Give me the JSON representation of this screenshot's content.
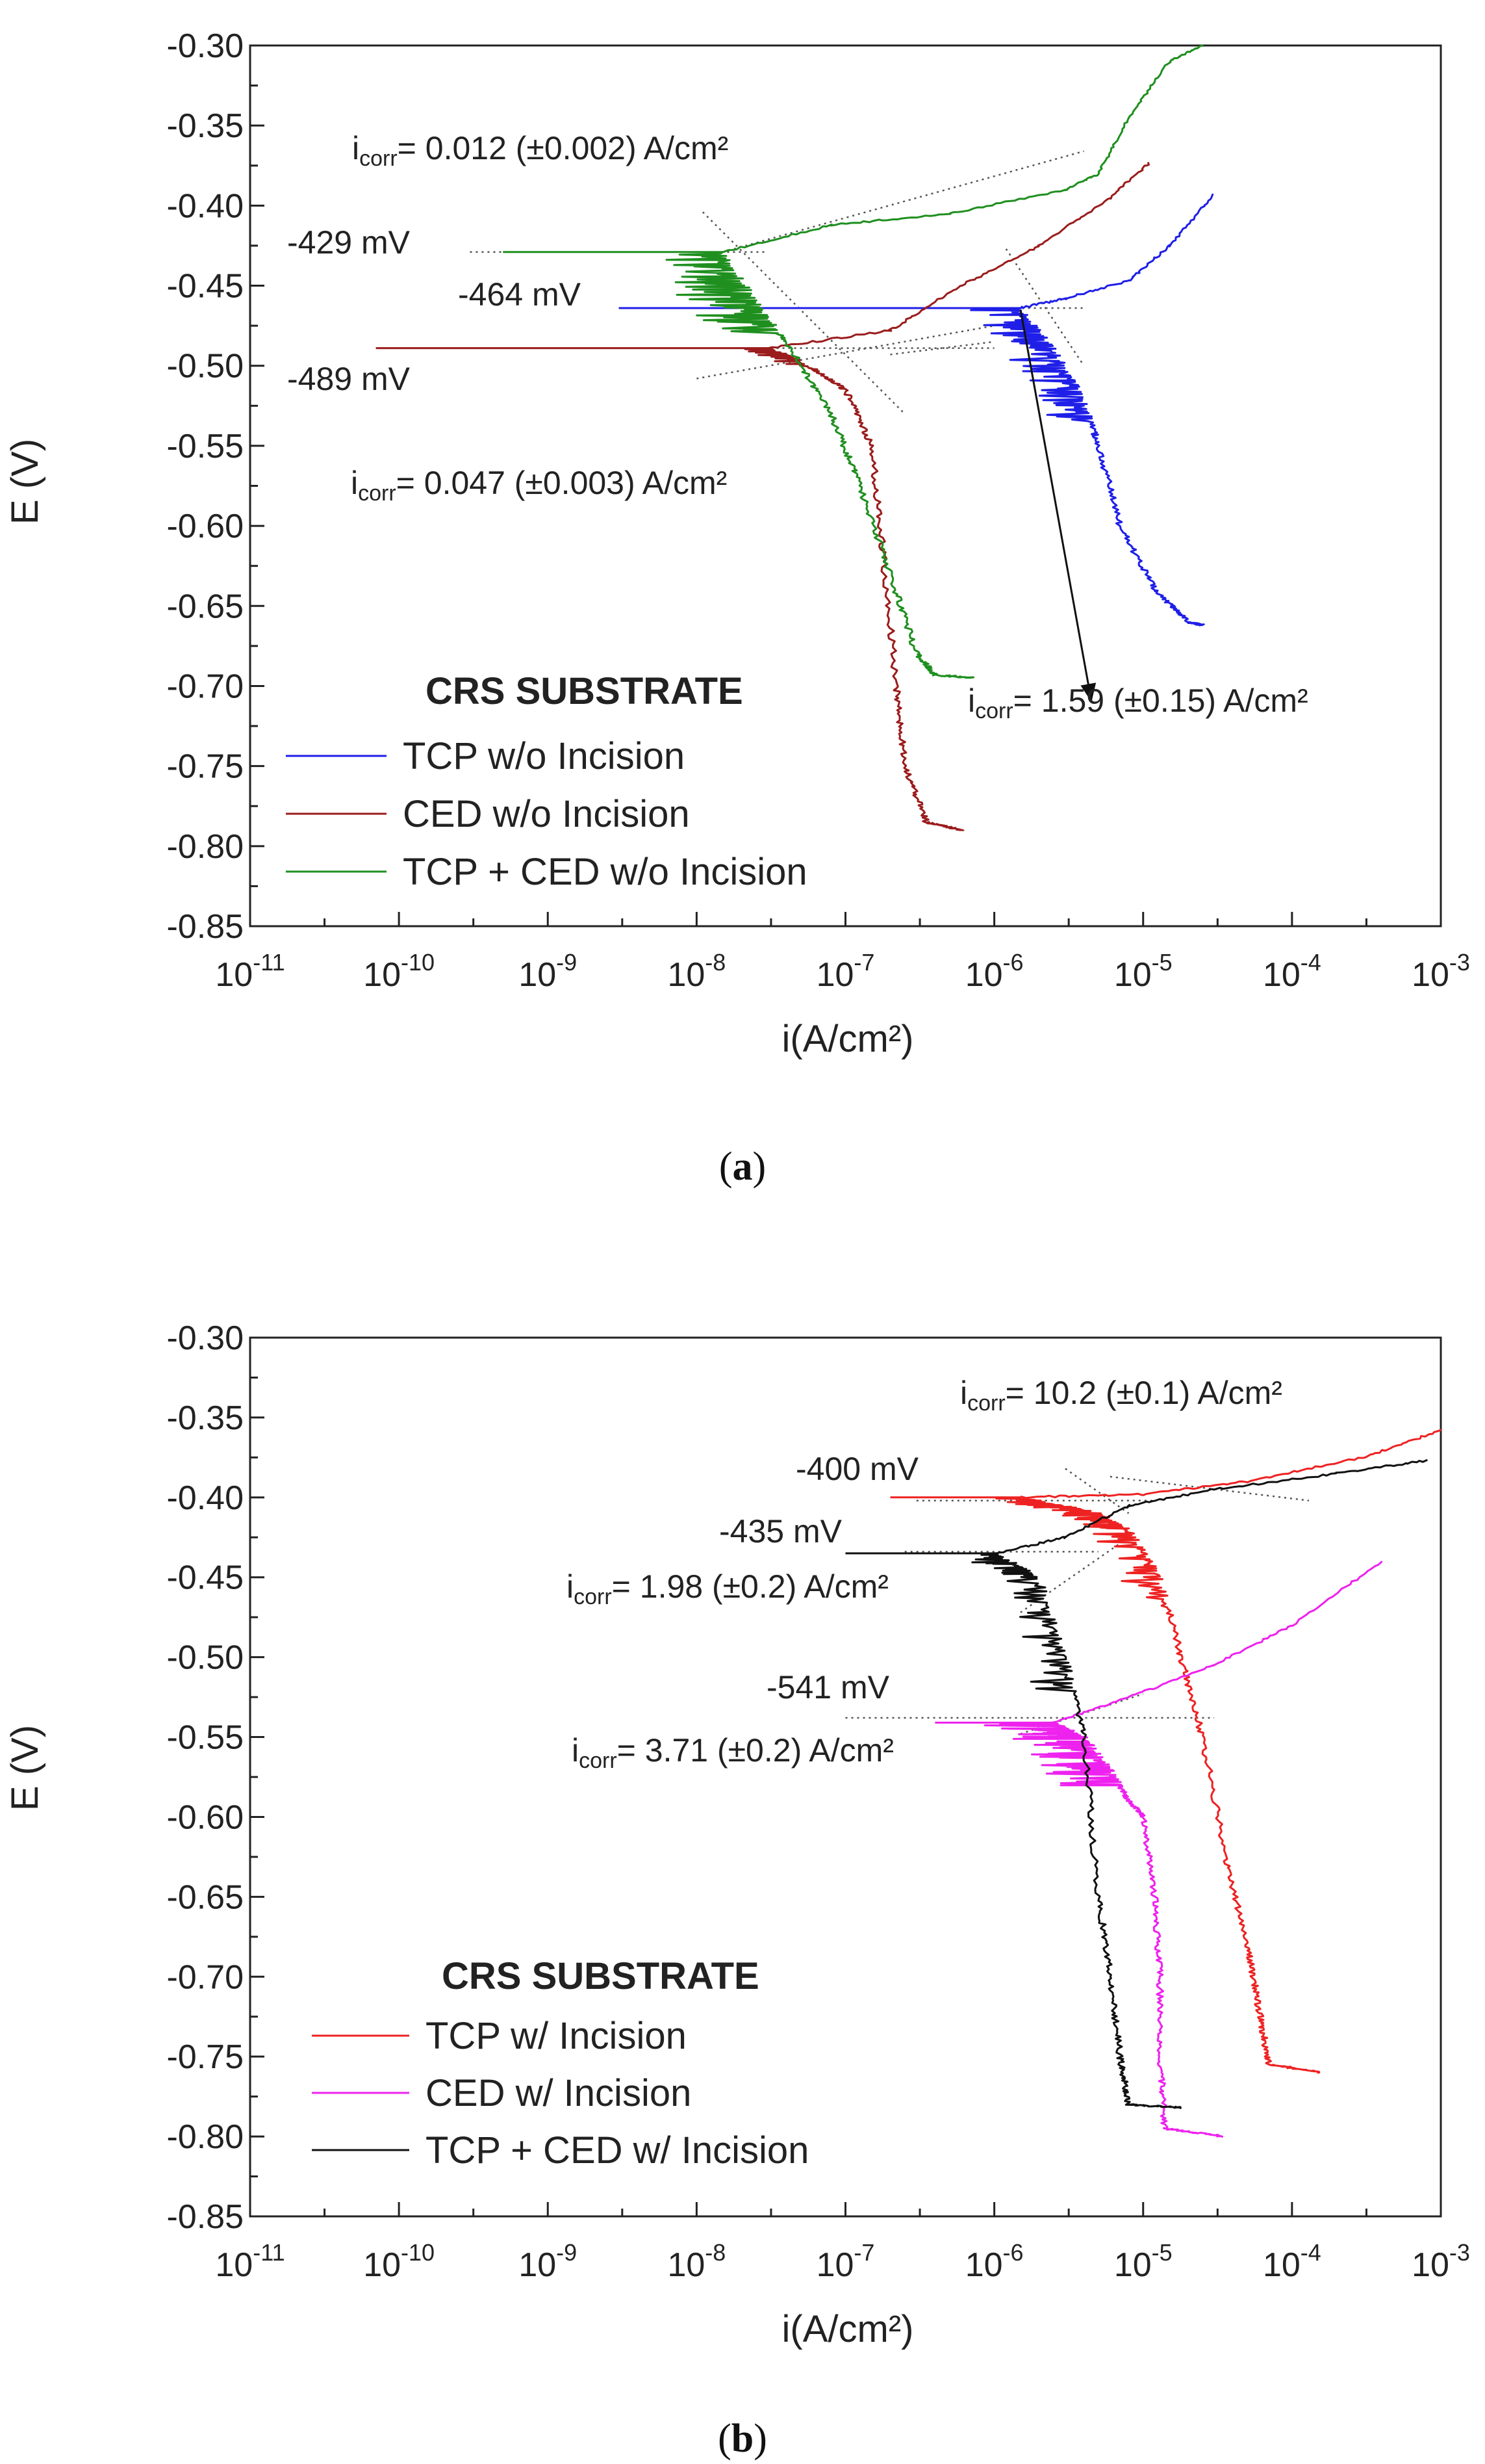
{
  "colors": {
    "blue": "#1f1fe8",
    "darkred": "#9b1c1c",
    "green": "#1f8f1f",
    "red": "#ee2222",
    "magenta": "#ee22ee",
    "black": "#111111",
    "axis": "#222222",
    "fit": "#555555"
  },
  "chart_data": [
    {
      "id": "a",
      "type": "line",
      "caption": "a",
      "xlabel": "i(A/cm²)",
      "ylabel": "E (V)",
      "xscale": "log",
      "xlim": [
        1e-11,
        0.001
      ],
      "ylim": [
        -0.85,
        -0.3
      ],
      "x_tick_exponents": [
        "-11",
        "-10",
        "-9",
        "-8",
        "-7",
        "-6",
        "-5",
        "-4",
        "-3"
      ],
      "x_tick_base": "10",
      "y_ticks": [
        "-0.30",
        "-0.35",
        "-0.40",
        "-0.45",
        "-0.50",
        "-0.55",
        "-0.60",
        "-0.65",
        "-0.70",
        "-0.75",
        "-0.80",
        "-0.85"
      ],
      "legend": {
        "title": "CRS SUBSTRATE",
        "placement": "bottom-left",
        "entries": [
          {
            "label": "TCP w/o Incision",
            "color": "#1f1fe8"
          },
          {
            "label": "CED w/o Incision",
            "color": "#9b1c1c"
          },
          {
            "label": "TCP + CED w/o Incision",
            "color": "#1f8f1f"
          }
        ]
      },
      "series": [
        {
          "name": "TCP w/o Incision",
          "color": "#1f1fe8",
          "ecorr": -0.464,
          "x_start": 3e-09,
          "i_knee": 1.5e-06,
          "anodic": [
            [
              1.5e-06,
              -0.464
            ],
            [
              3e-06,
              -0.458
            ],
            [
              8e-06,
              -0.447
            ],
            [
              1.5e-05,
              -0.425
            ],
            [
              3e-05,
              -0.393
            ]
          ],
          "cathodic": [
            [
              1.5e-06,
              -0.464
            ],
            [
              2.5e-06,
              -0.49
            ],
            [
              4e-06,
              -0.52
            ],
            [
              5e-06,
              -0.55
            ],
            [
              7e-06,
              -0.6
            ],
            [
              1.2e-05,
              -0.64
            ],
            [
              2e-05,
              -0.66
            ],
            [
              2.5e-05,
              -0.662
            ]
          ],
          "noise": {
            "from": -0.464,
            "to": -0.535,
            "amp": 0.35
          }
        },
        {
          "name": "CED w/o Incision",
          "color": "#9b1c1c",
          "ecorr": -0.489,
          "x_start": 7e-11,
          "i_knee": 3e-08,
          "anodic": [
            [
              3e-08,
              -0.489
            ],
            [
              2e-07,
              -0.478
            ],
            [
              6e-07,
              -0.45
            ],
            [
              2e-06,
              -0.425
            ],
            [
              6e-06,
              -0.395
            ],
            [
              1.1e-05,
              -0.373
            ]
          ],
          "cathodic": [
            [
              3e-08,
              -0.489
            ],
            [
              5e-08,
              -0.497
            ],
            [
              1e-07,
              -0.515
            ],
            [
              1.5e-07,
              -0.55
            ],
            [
              1.8e-07,
              -0.62
            ],
            [
              2.2e-07,
              -0.7
            ],
            [
              2.5e-07,
              -0.75
            ],
            [
              3.5e-07,
              -0.785
            ],
            [
              6e-07,
              -0.79
            ]
          ],
          "noise": {
            "from": -0.489,
            "to": -0.5,
            "amp": 0.2
          }
        },
        {
          "name": "TCP + CED w/o Incision",
          "color": "#1f8f1f",
          "ecorr": -0.429,
          "x_start": 5e-10,
          "i_knee": 1.5e-08,
          "anodic": [
            [
              1.5e-08,
              -0.429
            ],
            [
              8e-08,
              -0.412
            ],
            [
              5e-07,
              -0.405
            ],
            [
              3e-06,
              -0.39
            ],
            [
              5e-06,
              -0.38
            ],
            [
              8e-06,
              -0.345
            ],
            [
              1.5e-05,
              -0.31
            ],
            [
              2.5e-05,
              -0.3
            ]
          ],
          "cathodic": [
            [
              1.5e-08,
              -0.429
            ],
            [
              2.5e-08,
              -0.46
            ],
            [
              4e-08,
              -0.485
            ],
            [
              8e-08,
              -0.53
            ],
            [
              1.2e-07,
              -0.57
            ],
            [
              2e-07,
              -0.63
            ],
            [
              3e-07,
              -0.68
            ],
            [
              4e-07,
              -0.693
            ],
            [
              7e-07,
              -0.695
            ]
          ],
          "noise": {
            "from": -0.429,
            "to": -0.48,
            "amp": 0.5
          }
        }
      ],
      "fit_lines": [
        [
          [
            1.5e-08,
            -0.429
          ],
          [
            4e-06,
            -0.366
          ]
        ],
        [
          [
            1.1e-08,
            -0.404
          ],
          [
            2.5e-07,
            -0.53
          ]
        ],
        [
          [
            3e-10,
            -0.429
          ],
          [
            3e-08,
            -0.429
          ]
        ],
        [
          [
            1e-08,
            -0.508
          ],
          [
            1e-06,
            -0.475
          ]
        ],
        [
          [
            3e-09,
            -0.489
          ],
          [
            1e-06,
            -0.489
          ]
        ],
        [
          [
            2e-07,
            -0.493
          ],
          [
            1e-06,
            -0.485
          ]
        ],
        [
          [
            3e-09,
            -0.464
          ],
          [
            4e-06,
            -0.464
          ]
        ],
        [
          [
            1.2e-06,
            -0.427
          ],
          [
            4e-06,
            -0.5
          ]
        ]
      ],
      "annotations": [
        {
          "sym": "i",
          "sub": "corr",
          "rest": "= 0.012 (±0.002) A/cm²"
        },
        {
          "text": "-429 mV"
        },
        {
          "text": "-464 mV"
        },
        {
          "text": "-489 mV"
        },
        {
          "sym": "i",
          "sub": "corr",
          "rest": "= 0.047 (±0.003) A/cm²"
        },
        {
          "sym": "i",
          "sub": "corr",
          "rest": "= 1.59 (±0.15) A/cm²"
        }
      ],
      "arrow": {
        "from": [
          1.5e-06,
          -0.465
        ],
        "to": [
          4.5e-06,
          -0.71
        ]
      }
    },
    {
      "id": "b",
      "type": "line",
      "caption": "b",
      "xlabel": "i(A/cm²)",
      "ylabel": "E (V)",
      "xscale": "log",
      "xlim": [
        1e-11,
        0.001
      ],
      "ylim": [
        -0.85,
        -0.3
      ],
      "x_tick_exponents": [
        "-11",
        "-10",
        "-9",
        "-8",
        "-7",
        "-6",
        "-5",
        "-4",
        "-3"
      ],
      "x_tick_base": "10",
      "y_ticks": [
        "-0.30",
        "-0.35",
        "-0.40",
        "-0.45",
        "-0.50",
        "-0.55",
        "-0.60",
        "-0.65",
        "-0.70",
        "-0.75",
        "-0.80",
        "-0.85"
      ],
      "legend": {
        "title": "CRS SUBSTRATE",
        "placement": "bottom-left",
        "entries": [
          {
            "label": "TCP w/ Incision",
            "color": "#ee2222"
          },
          {
            "label": "CED w/ Incision",
            "color": "#ee22ee"
          },
          {
            "label": "TCP + CED w/ Incision",
            "color": "#111111"
          }
        ]
      },
      "series": [
        {
          "name": "TCP w/ Incision",
          "color": "#ee2222",
          "ecorr": -0.4,
          "x_start": 2e-07,
          "i_knee": 1.5e-06,
          "anodic": [
            [
              1.5e-06,
              -0.4
            ],
            [
              1e-05,
              -0.398
            ],
            [
              5e-05,
              -0.39
            ],
            [
              0.0003,
              -0.375
            ],
            [
              0.001,
              -0.358
            ]
          ],
          "cathodic": [
            [
              1.5e-06,
              -0.4
            ],
            [
              5e-06,
              -0.41
            ],
            [
              8e-06,
              -0.42
            ],
            [
              1.3e-05,
              -0.45
            ],
            [
              1.8e-05,
              -0.5
            ],
            [
              2.5e-05,
              -0.55
            ],
            [
              3.5e-05,
              -0.62
            ],
            [
              5e-05,
              -0.68
            ],
            [
              6e-05,
              -0.72
            ],
            [
              7e-05,
              -0.755
            ],
            [
              0.00016,
              -0.76
            ]
          ],
          "noise": {
            "from": -0.4,
            "to": -0.47,
            "amp": 0.25
          }
        },
        {
          "name": "CED w/ Incision",
          "color": "#ee22ee",
          "ecorr": -0.541,
          "x_start": 4e-07,
          "i_knee": 2.5e-06,
          "anodic": [
            [
              2.5e-06,
              -0.541
            ],
            [
              8e-06,
              -0.525
            ],
            [
              3e-05,
              -0.505
            ],
            [
              0.0001,
              -0.48
            ],
            [
              0.0004,
              -0.44
            ]
          ],
          "cathodic": [
            [
              2.5e-06,
              -0.541
            ],
            [
              4e-06,
              -0.55
            ],
            [
              6e-06,
              -0.57
            ],
            [
              8e-06,
              -0.59
            ],
            [
              1e-05,
              -0.6
            ],
            [
              1.2e-05,
              -0.65
            ],
            [
              1.3e-05,
              -0.7
            ],
            [
              1.3e-05,
              -0.75
            ],
            [
              1.4e-05,
              -0.795
            ],
            [
              3.5e-05,
              -0.8
            ]
          ],
          "noise": {
            "from": -0.541,
            "to": -0.58,
            "amp": 0.5
          }
        },
        {
          "name": "TCP + CED w/ Incision",
          "color": "#111111",
          "ecorr": -0.435,
          "x_start": 1e-07,
          "i_knee": 1e-06,
          "anodic": [
            [
              1e-06,
              -0.435
            ],
            [
              3e-06,
              -0.425
            ],
            [
              8e-06,
              -0.405
            ],
            [
              3e-05,
              -0.395
            ],
            [
              0.0002,
              -0.385
            ],
            [
              0.0008,
              -0.377
            ]
          ],
          "cathodic": [
            [
              1e-06,
              -0.435
            ],
            [
              2e-06,
              -0.45
            ],
            [
              3e-06,
              -0.5
            ],
            [
              4e-06,
              -0.55
            ],
            [
              5e-06,
              -0.65
            ],
            [
              6e-06,
              -0.7
            ],
            [
              7e-06,
              -0.75
            ],
            [
              8e-06,
              -0.78
            ],
            [
              1.8e-05,
              -0.782
            ]
          ],
          "noise": {
            "from": -0.435,
            "to": -0.52,
            "amp": 0.25
          }
        }
      ],
      "fit_lines": [
        [
          [
            3e-07,
            -0.402
          ],
          [
            1.2e-05,
            -0.402
          ]
        ],
        [
          [
            6e-06,
            -0.387
          ],
          [
            0.00013,
            -0.402
          ]
        ],
        [
          [
            3e-06,
            -0.382
          ],
          [
            8e-06,
            -0.41
          ]
        ],
        [
          [
            2.5e-07,
            -0.434
          ],
          [
            5e-06,
            -0.434
          ]
        ],
        [
          [
            1.5e-06,
            -0.472
          ],
          [
            8e-06,
            -0.425
          ]
        ],
        [
          [
            1e-07,
            -0.538
          ],
          [
            3e-05,
            -0.538
          ]
        ],
        [
          [
            1.5e-06,
            -0.548
          ],
          [
            1e-05,
            -0.523
          ]
        ]
      ],
      "annotations": [
        {
          "sym": "i",
          "sub": "corr",
          "rest": "= 10.2 (±0.1) A/cm²"
        },
        {
          "text": "-400 mV"
        },
        {
          "text": "-435 mV"
        },
        {
          "sym": "i",
          "sub": "corr",
          "rest": "= 1.98 (±0.2) A/cm²"
        },
        {
          "text": "-541 mV"
        },
        {
          "sym": "i",
          "sub": "corr",
          "rest": "= 3.71 (±0.2) A/cm²"
        }
      ]
    }
  ]
}
